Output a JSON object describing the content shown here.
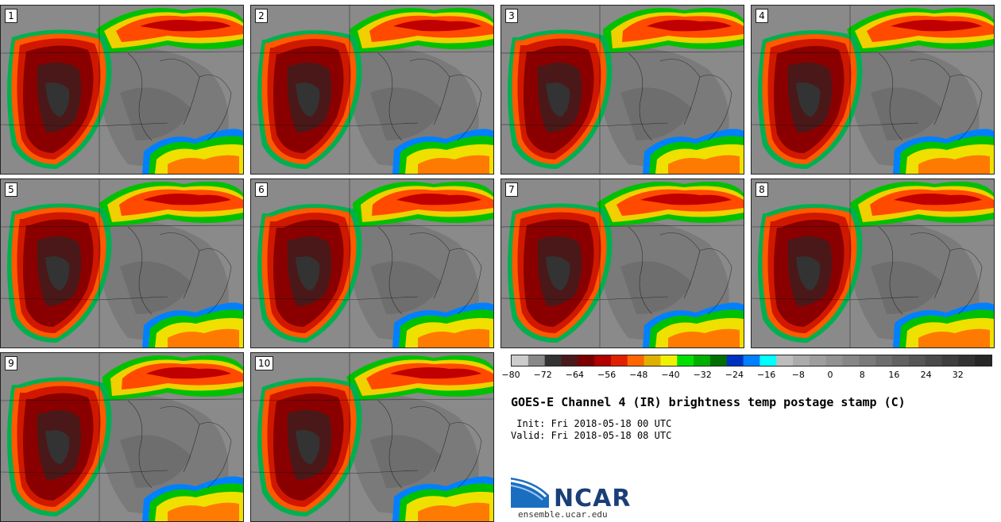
{
  "panels": [
    {
      "label": "1"
    },
    {
      "label": "2"
    },
    {
      "label": "3"
    },
    {
      "label": "4"
    },
    {
      "label": "5"
    },
    {
      "label": "6"
    },
    {
      "label": "7"
    },
    {
      "label": "8"
    },
    {
      "label": "9"
    },
    {
      "label": "10"
    }
  ],
  "colorbar": {
    "colors": [
      "#cccccc",
      "#888888",
      "#333333",
      "#4a1a1a",
      "#7a0000",
      "#b00000",
      "#e02000",
      "#ff6600",
      "#e0b000",
      "#f0f000",
      "#00e000",
      "#00b000",
      "#007000",
      "#0030c0",
      "#0080ff",
      "#00ffff",
      "#bdbdbd",
      "#ababab",
      "#9e9e9e",
      "#929292",
      "#868686",
      "#7a7a7a",
      "#6e6e6e",
      "#626262",
      "#565656",
      "#4a4a4a",
      "#3e3e3e",
      "#323232",
      "#262626"
    ],
    "ticks": [
      "−80",
      "−72",
      "−64",
      "−56",
      "−48",
      "−40",
      "−32",
      "−24",
      "−16",
      "−8",
      "0",
      "8",
      "16",
      "24",
      "32"
    ]
  },
  "title": "GOES-E Channel 4 (IR) brightness temp postage stamp (C)",
  "init": " Init: Fri 2018-05-18 00 UTC",
  "valid": "Valid: Fri 2018-05-18 08 UTC",
  "logo": {
    "text": "NCAR",
    "url": "ensemble.ucar.edu"
  }
}
